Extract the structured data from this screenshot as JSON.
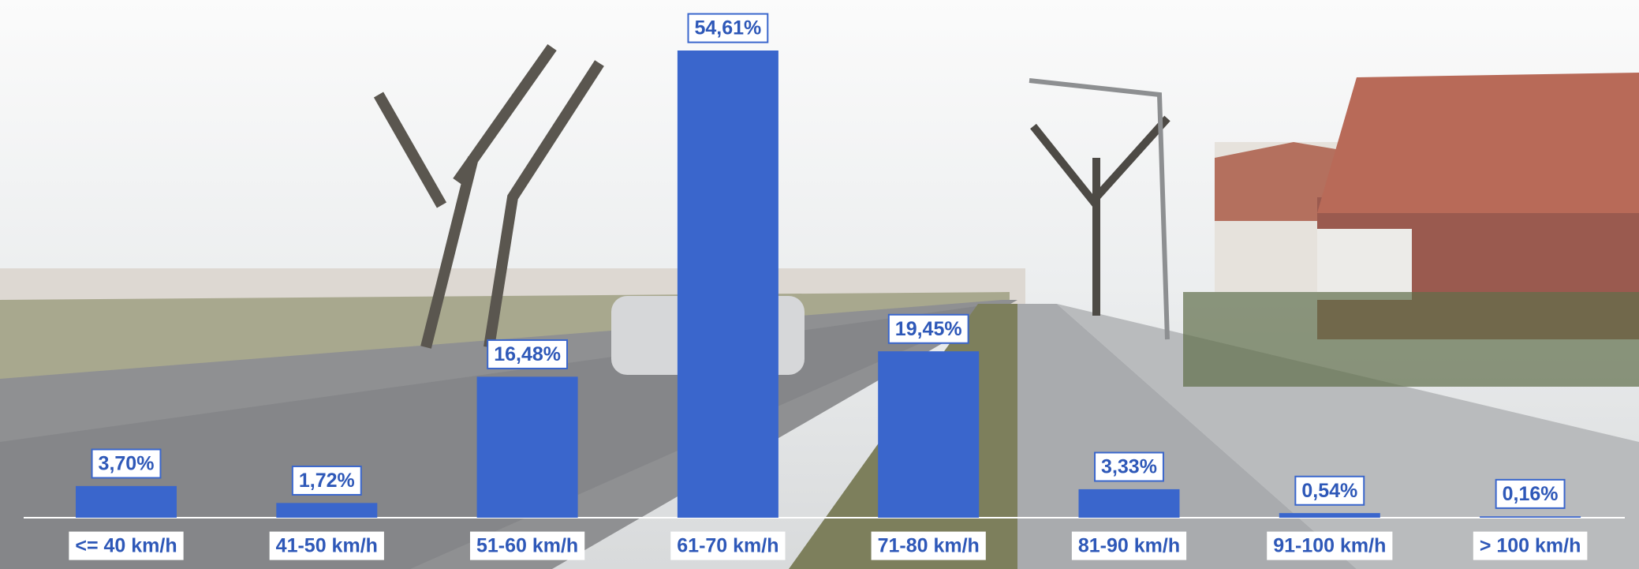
{
  "chart_data": {
    "type": "bar",
    "categories": [
      "<= 40 km/h",
      "41-50 km/h",
      "51-60 km/h",
      "61-70 km/h",
      "71-80 km/h",
      "81-90 km/h",
      "91-100 km/h",
      "> 100 km/h"
    ],
    "values": [
      3.7,
      1.72,
      16.48,
      54.61,
      19.45,
      3.33,
      0.54,
      0.16
    ],
    "value_labels": [
      "3,70%",
      "1,72%",
      "16,48%",
      "54,61%",
      "19,45%",
      "3,33%",
      "0,54%",
      "0,16%"
    ],
    "color": "#3a66cc"
  }
}
